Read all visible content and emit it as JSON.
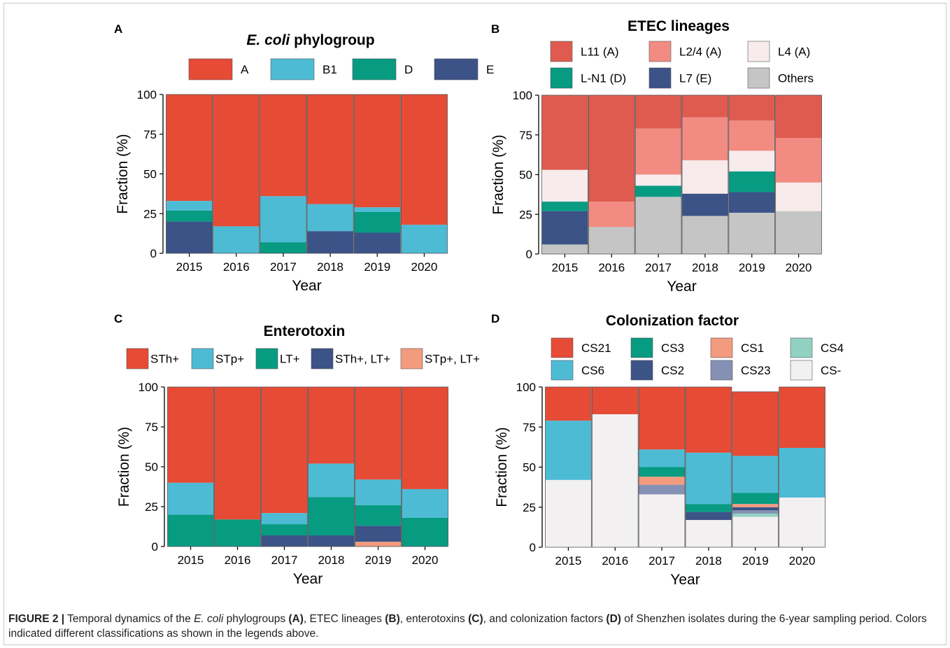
{
  "chart_data": [
    {
      "panel_letter": "A",
      "type": "bar",
      "stacked": true,
      "title_italic": "E. coli",
      "title_rest": " phylogroup",
      "xlabel": "Year",
      "ylabel": "Fraction (%)",
      "ylim": [
        0,
        100
      ],
      "yticks": [
        0,
        25,
        50,
        75,
        100
      ],
      "categories": [
        "2015",
        "2016",
        "2017",
        "2018",
        "2019",
        "2020"
      ],
      "series": [
        {
          "name": "E",
          "color": "#3b5387",
          "values": [
            20,
            0,
            0,
            14,
            13,
            0
          ]
        },
        {
          "name": "D",
          "color": "#079b82",
          "values": [
            7,
            0,
            7,
            0,
            13,
            0
          ]
        },
        {
          "name": "B1",
          "color": "#4ebbd5",
          "values": [
            6,
            17,
            29,
            17,
            3,
            18
          ]
        },
        {
          "name": "A",
          "color": "#e64b35",
          "values": [
            67,
            83,
            64,
            69,
            71,
            82
          ]
        }
      ],
      "legend_order": [
        "A",
        "B1",
        "D",
        "E"
      ],
      "legend_cols": 4
    },
    {
      "panel_letter": "B",
      "type": "bar",
      "stacked": true,
      "title_italic": "",
      "title_rest": "ETEC lineages",
      "xlabel": "Year",
      "ylabel": "Fraction (%)",
      "ylim": [
        0,
        100
      ],
      "yticks": [
        0,
        25,
        50,
        75,
        100
      ],
      "categories": [
        "2015",
        "2016",
        "2017",
        "2018",
        "2019",
        "2020"
      ],
      "series": [
        {
          "name": "Others",
          "color": "#c5c5c5",
          "values": [
            6,
            17,
            36,
            24,
            26,
            27
          ]
        },
        {
          "name": "L7 (E)",
          "color": "#3b5387",
          "values": [
            21,
            0,
            0,
            14,
            13,
            0
          ]
        },
        {
          "name": "L-N1 (D)",
          "color": "#079b82",
          "values": [
            6,
            0,
            7,
            0,
            13,
            0
          ]
        },
        {
          "name": "L4 (A)",
          "color": "#f8ebeb",
          "values": [
            20,
            0,
            7,
            21,
            13,
            18
          ]
        },
        {
          "name": "L2/4 (A)",
          "color": "#f28c83",
          "values": [
            0,
            16,
            29,
            27,
            19,
            28
          ]
        },
        {
          "name": "L11 (A)",
          "color": "#df5b50",
          "values": [
            47,
            67,
            21,
            14,
            16,
            27
          ]
        }
      ],
      "legend_order": [
        "L11 (A)",
        "L2/4 (A)",
        "L4 (A)",
        "L-N1 (D)",
        "L7 (E)",
        "Others"
      ],
      "legend_cols": 3
    },
    {
      "panel_letter": "C",
      "type": "bar",
      "stacked": true,
      "title_italic": "",
      "title_rest": "Enterotoxin",
      "xlabel": "Year",
      "ylabel": "Fraction (%)",
      "ylim": [
        0,
        100
      ],
      "yticks": [
        0,
        25,
        50,
        75,
        100
      ],
      "categories": [
        "2015",
        "2016",
        "2017",
        "2018",
        "2019",
        "2020"
      ],
      "series": [
        {
          "name": "STp+, LT+",
          "color": "#f39b7f",
          "values": [
            0,
            0,
            0,
            0,
            3,
            0
          ]
        },
        {
          "name": "STh+, LT+",
          "color": "#3b5387",
          "values": [
            0,
            0,
            7,
            7,
            10,
            0
          ]
        },
        {
          "name": "LT+",
          "color": "#079b82",
          "values": [
            20,
            17,
            7,
            24,
            13,
            18
          ]
        },
        {
          "name": "STp+",
          "color": "#4ebbd5",
          "values": [
            20,
            0,
            7,
            21,
            16,
            18
          ]
        },
        {
          "name": "STh+",
          "color": "#e64b35",
          "values": [
            60,
            83,
            79,
            48,
            58,
            64
          ]
        }
      ],
      "legend_order": [
        "STh+",
        "STp+",
        "LT+",
        "STh+, LT+",
        "STp+, LT+"
      ],
      "legend_cols": 5
    },
    {
      "panel_letter": "D",
      "type": "bar",
      "stacked": true,
      "title_italic": "",
      "title_rest": "Colonization factor",
      "xlabel": "Year",
      "ylabel": "Fraction (%)",
      "ylim": [
        0,
        100
      ],
      "yticks": [
        0,
        25,
        50,
        75,
        100
      ],
      "categories": [
        "2015",
        "2016",
        "2017",
        "2018",
        "2019",
        "2020"
      ],
      "series": [
        {
          "name": "CS-",
          "color": "#f2f0f1",
          "values": [
            42,
            83,
            33,
            17,
            19,
            31
          ]
        },
        {
          "name": "CS4",
          "color": "#91d1c2",
          "values": [
            0,
            0,
            0,
            0,
            2,
            0
          ]
        },
        {
          "name": "CS23",
          "color": "#8491b4",
          "values": [
            0,
            0,
            6,
            0,
            2,
            0
          ]
        },
        {
          "name": "CS2",
          "color": "#3b5387",
          "values": [
            0,
            0,
            0,
            5,
            2,
            0
          ]
        },
        {
          "name": "CS1",
          "color": "#f39b7f",
          "values": [
            0,
            0,
            5,
            0,
            2,
            0
          ]
        },
        {
          "name": "CS3",
          "color": "#079b82",
          "values": [
            0,
            0,
            6,
            5,
            7,
            0
          ]
        },
        {
          "name": "CS6",
          "color": "#4ebbd5",
          "values": [
            37,
            0,
            11,
            32,
            23,
            31
          ]
        },
        {
          "name": "CS21",
          "color": "#e64b35",
          "values": [
            21,
            17,
            39,
            41,
            40,
            38
          ]
        }
      ],
      "legend_order": [
        "CS21",
        "CS3",
        "CS1",
        "CS4",
        "CS6",
        "CS2",
        "CS23",
        "CS-"
      ],
      "legend_cols": 4
    }
  ],
  "caption": {
    "label": "FIGURE 2 |",
    "t1": " Temporal dynamics of the ",
    "t2": "E. coli",
    "t3": " phylogroups ",
    "r1": "(A)",
    "t4": ", ETEC lineages ",
    "r2": "(B)",
    "t5": ", enterotoxins ",
    "r3": "(C)",
    "t6": ", and colonization factors ",
    "r4": "(D)",
    "t7": " of Shenzhen isolates during the 6-year sampling period. Colors indicated different classifications as shown in the legends above."
  }
}
